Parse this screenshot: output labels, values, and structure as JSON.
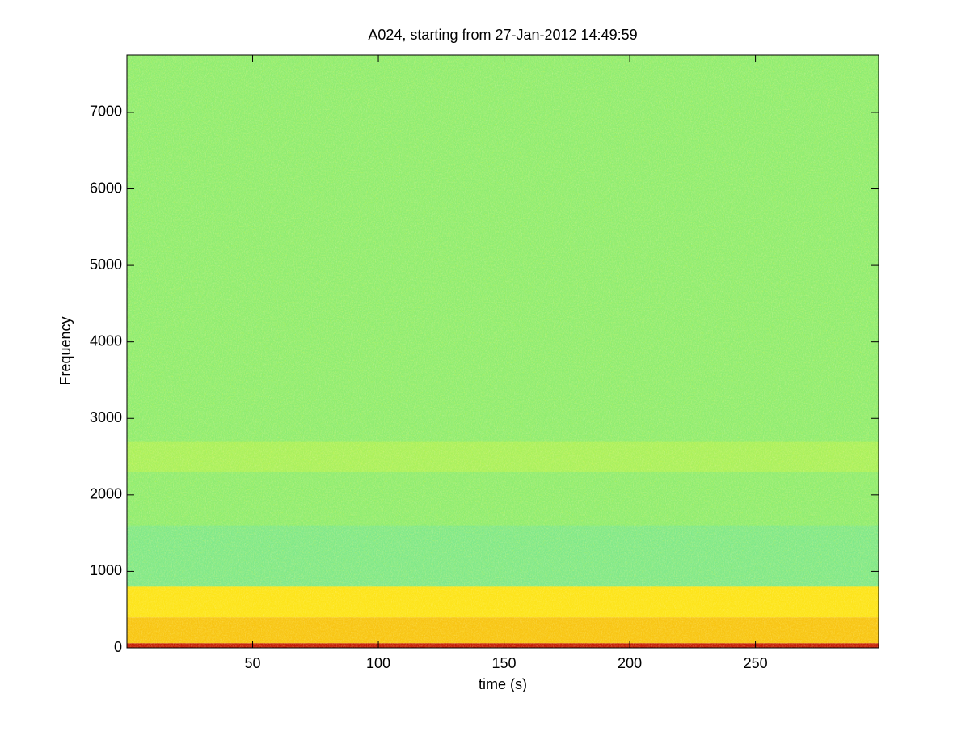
{
  "chart_data": {
    "type": "spectrogram",
    "title": "A024, starting from 27-Jan-2012 14:49:59",
    "xlabel": "time (s)",
    "ylabel": "Frequency",
    "xlim": [
      0,
      299
    ],
    "ylim": [
      0,
      7750
    ],
    "xticks": [
      50,
      100,
      150,
      200,
      250
    ],
    "yticks": [
      0,
      1000,
      2000,
      3000,
      4000,
      5000,
      6000,
      7000
    ],
    "bands": [
      {
        "from": 800,
        "to": 7750,
        "color": "#8fec72"
      },
      {
        "from": 800,
        "to": 1600,
        "color": "#80e88a"
      },
      {
        "from": 2300,
        "to": 2700,
        "color": "#a9f05e"
      },
      {
        "from": 400,
        "to": 800,
        "color": "#fde31a"
      },
      {
        "from": 60,
        "to": 400,
        "color": "#f8c414"
      },
      {
        "from": 0,
        "to": 60,
        "color": "#c41a08"
      }
    ]
  }
}
